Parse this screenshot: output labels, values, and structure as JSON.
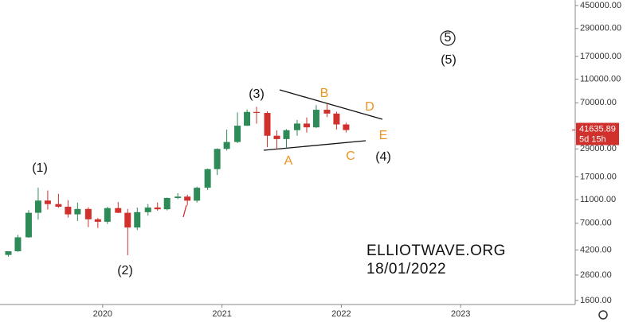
{
  "chart_data": {
    "type": "candlestick",
    "x": [
      2019.21,
      2019.29,
      2019.38,
      2019.46,
      2019.54,
      2019.63,
      2019.71,
      2019.79,
      2019.88,
      2019.96,
      2020.04,
      2020.13,
      2020.21,
      2020.29,
      2020.38,
      2020.46,
      2020.54,
      2020.63,
      2020.71,
      2020.79,
      2020.88,
      2020.96,
      2021.04,
      2021.13,
      2021.21,
      2021.29,
      2021.38,
      2021.46,
      2021.54,
      2021.63,
      2021.71,
      2021.79,
      2021.88,
      2021.96,
      2022.04
    ],
    "open": [
      3820,
      4100,
      5350,
      8550,
      10800,
      10100,
      9600,
      8300,
      9200,
      7550,
      7200,
      9350,
      8550,
      6450,
      8650,
      9450,
      9150,
      11350,
      11650,
      10780,
      13800,
      19700,
      29000,
      33100,
      45200,
      58800,
      57700,
      37300,
      35000,
      41500,
      47100,
      43800,
      61300,
      57000,
      46300
    ],
    "high": [
      4100,
      5600,
      9000,
      13800,
      13100,
      12300,
      10900,
      10400,
      9500,
      7750,
      9600,
      10500,
      9200,
      9450,
      10100,
      10400,
      11450,
      12450,
      12100,
      14100,
      19900,
      29300,
      41900,
      58300,
      61700,
      64800,
      59500,
      41300,
      42300,
      50500,
      52900,
      67000,
      69000,
      59100,
      47900
    ],
    "low": [
      3700,
      4050,
      5300,
      7500,
      9100,
      9400,
      7800,
      7300,
      6500,
      6400,
      6900,
      8500,
      3800,
      6150,
      8100,
      8900,
      8950,
      11100,
      9850,
      10400,
      13200,
      17600,
      28100,
      32400,
      44900,
      47000,
      30000,
      28800,
      29300,
      37300,
      39600,
      43300,
      53300,
      42000,
      39700
    ],
    "close": [
      4100,
      5350,
      8550,
      10800,
      10100,
      9600,
      8300,
      9200,
      7550,
      7200,
      9350,
      8550,
      6450,
      8650,
      9450,
      9150,
      11350,
      11650,
      10780,
      13800,
      19700,
      29000,
      33100,
      45200,
      58800,
      57700,
      37300,
      35000,
      41500,
      47100,
      43800,
      61300,
      57000,
      46300,
      41600
    ],
    "up_color": "#2e8b57",
    "down_color": "#d0312d",
    "xlim": [
      2019.14,
      2023.96
    ],
    "xticks": [
      2020,
      2021,
      2022,
      2023
    ],
    "ylim": [
      1480,
      500000
    ],
    "log_scale": true,
    "yticks": [
      {
        "value": 450000,
        "label": "450000.00"
      },
      {
        "value": 290000,
        "label": "290000.00"
      },
      {
        "value": 170000,
        "label": "170000.00"
      },
      {
        "value": 110000,
        "label": "110000.00"
      },
      {
        "value": 70000,
        "label": "70000.00"
      },
      {
        "value": 29000,
        "label": "29000.00"
      },
      {
        "value": 17000,
        "label": "17000.00"
      },
      {
        "value": 11000,
        "label": "11000.00"
      },
      {
        "value": 7000,
        "label": "7000.00"
      },
      {
        "value": 4200,
        "label": "4200.00"
      },
      {
        "value": 2600,
        "label": "2600.00"
      },
      {
        "value": 1600,
        "label": "1600.00"
      }
    ],
    "last_price": {
      "value": 41635.89,
      "label": "41635.89",
      "countdown": "5d 15h"
    },
    "annotations": [
      "(1)",
      "(2)",
      "(3)",
      "(4)",
      "(5)",
      "5",
      "A",
      "B",
      "C",
      "D",
      "E"
    ],
    "watermark": [
      "ELLIOTWAVE.ORG",
      "18/01/2022"
    ]
  }
}
